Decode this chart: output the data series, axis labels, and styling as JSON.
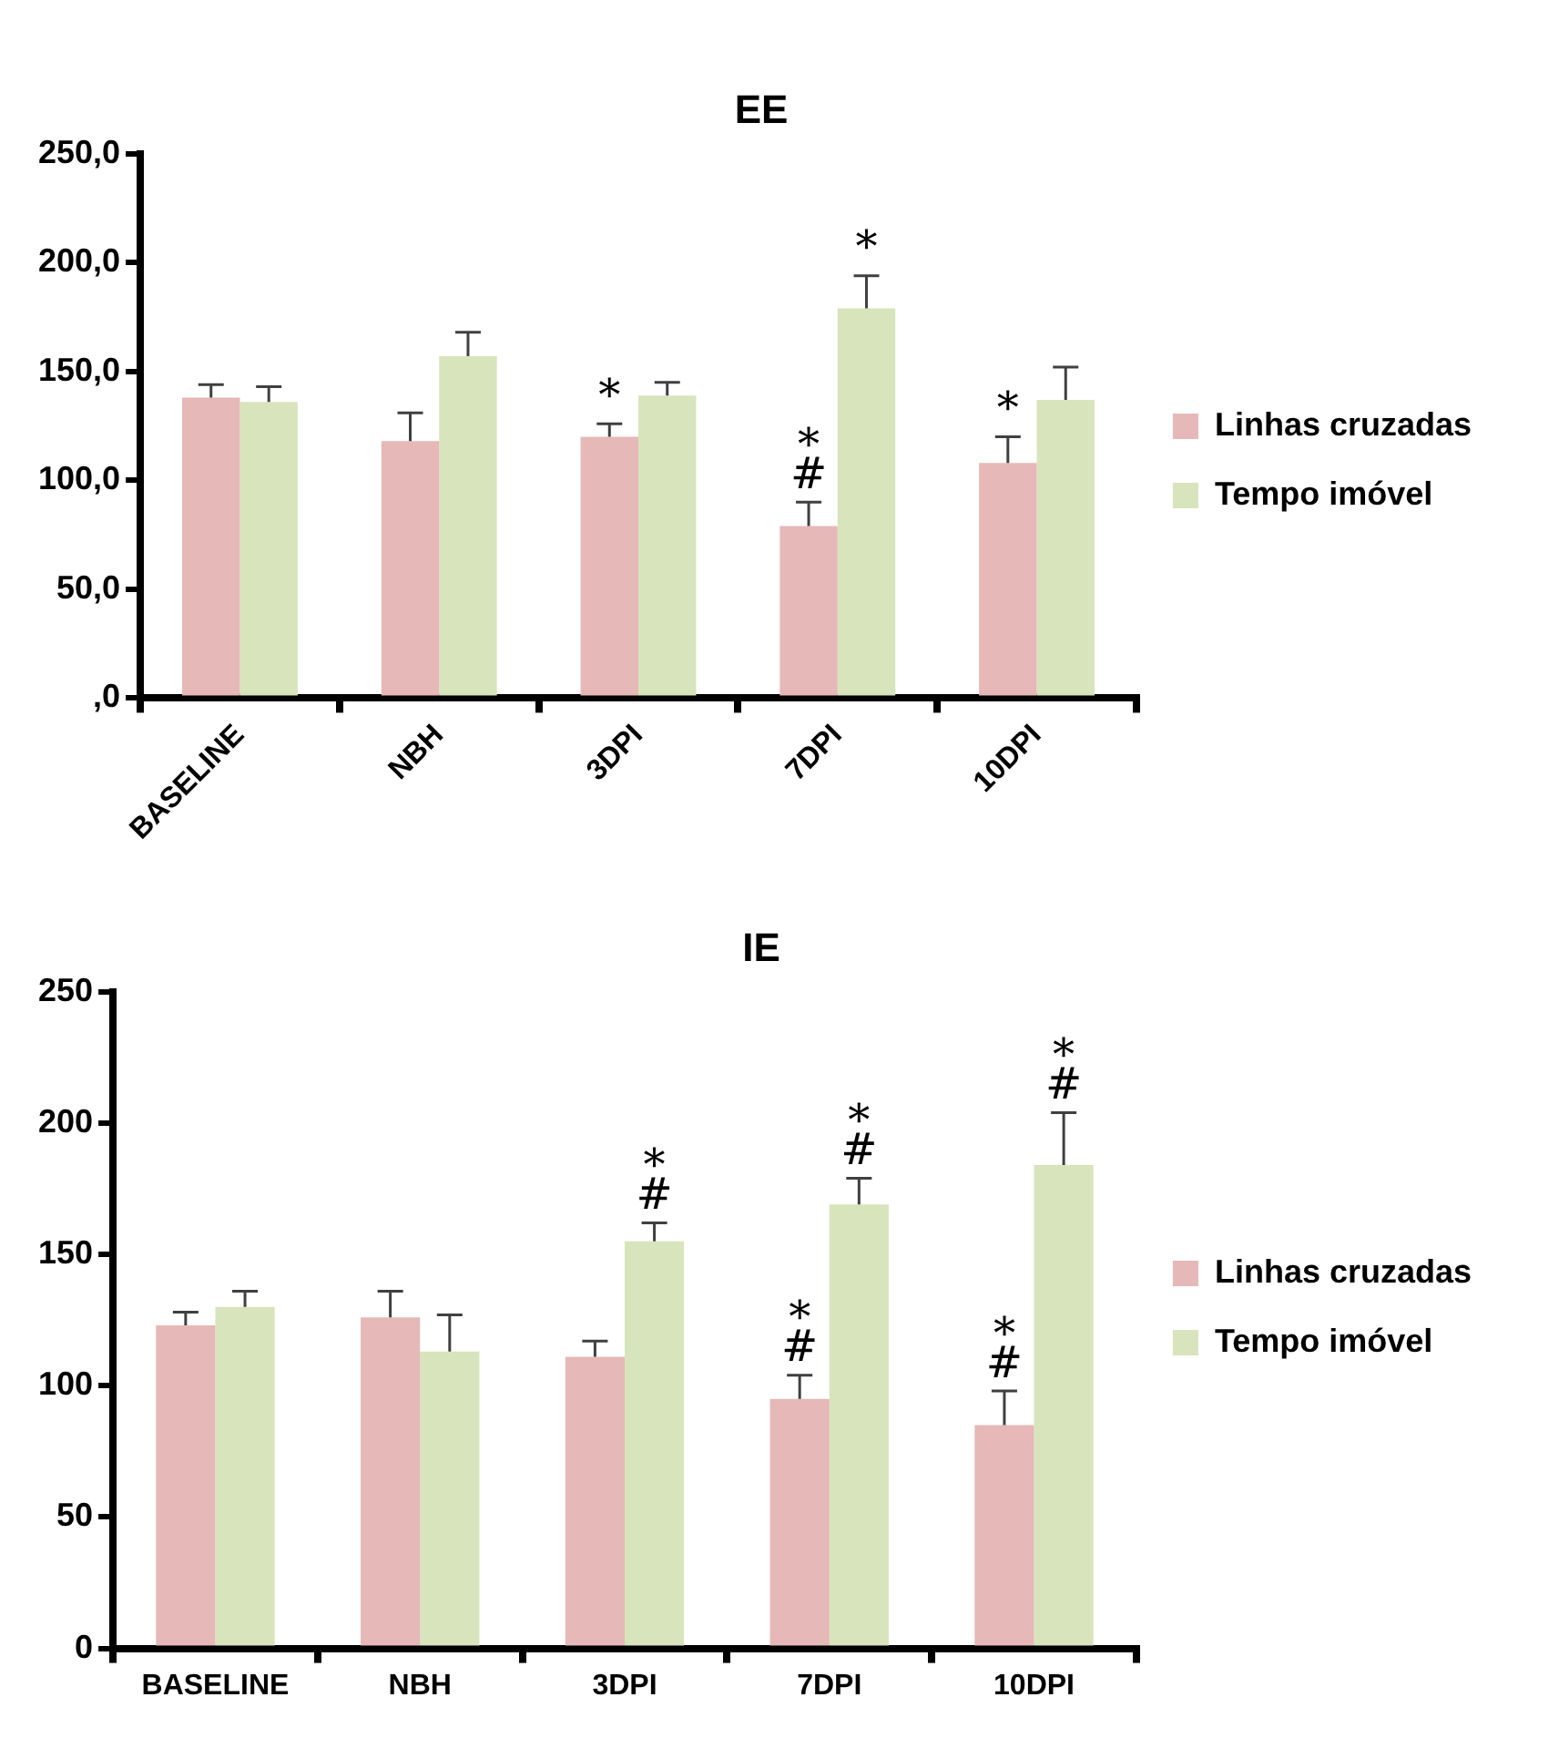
{
  "chart_data": [
    {
      "type": "bar",
      "title": "EE",
      "categories": [
        "BASELINE",
        "NBH",
        "3DPI",
        "7DPI",
        "10DPI"
      ],
      "series": [
        {
          "name": "Linhas cruzadas",
          "color": "#e6b8b7",
          "values": [
            138,
            118,
            120,
            79,
            108
          ],
          "errors": [
            [
              138,
              144
            ],
            [
              118,
              131
            ],
            [
              120,
              126
            ],
            [
              79,
              90
            ],
            [
              108,
              120
            ]
          ],
          "value_labels": [
            null,
            null,
            "*",
            "*\n#",
            "*"
          ]
        },
        {
          "name": "Tempo imóvel",
          "color": "#d8e4bc",
          "values": [
            136,
            157,
            139,
            179,
            137
          ],
          "errors": [
            [
              136,
              143
            ],
            [
              157,
              168
            ],
            [
              139,
              145
            ],
            [
              179,
              194
            ],
            [
              137,
              152
            ]
          ],
          "value_labels": [
            null,
            null,
            null,
            "*",
            null
          ]
        }
      ],
      "ylim": [
        0,
        250
      ],
      "yticks": [
        {
          "value": 0,
          "label": ",0"
        },
        {
          "value": 50,
          "label": "50,0"
        },
        {
          "value": 100,
          "label": "100,0"
        },
        {
          "value": 150,
          "label": "150,0"
        },
        {
          "value": 200,
          "label": "200,0"
        },
        {
          "value": 250,
          "label": "250,0"
        }
      ],
      "grid": false,
      "legend": "right"
    },
    {
      "type": "bar",
      "title": "IE",
      "categories": [
        "BASELINE",
        "NBH",
        "3DPI",
        "7DPI",
        "10DPI"
      ],
      "series": [
        {
          "name": "Linhas cruzadas",
          "color": "#e6b8b7",
          "values": [
            123,
            126,
            111,
            95,
            85
          ],
          "errors": [
            [
              123,
              128
            ],
            [
              126,
              136
            ],
            [
              111,
              117
            ],
            [
              95,
              104
            ],
            [
              85,
              98
            ]
          ],
          "value_labels": [
            null,
            null,
            null,
            "*\n#",
            "*\n#"
          ]
        },
        {
          "name": "Tempo imóvel",
          "color": "#d8e4bc",
          "values": [
            130,
            113,
            155,
            169,
            184
          ],
          "errors": [
            [
              130,
              136
            ],
            [
              113,
              127
            ],
            [
              155,
              162
            ],
            [
              169,
              179
            ],
            [
              184,
              204
            ]
          ],
          "value_labels": [
            null,
            null,
            "*\n#",
            "*\n#",
            "*\n#"
          ]
        }
      ],
      "ylim": [
        0,
        250
      ],
      "yticks": [
        0,
        50,
        100,
        150,
        200,
        250
      ],
      "grid": false,
      "legend": "right"
    }
  ]
}
